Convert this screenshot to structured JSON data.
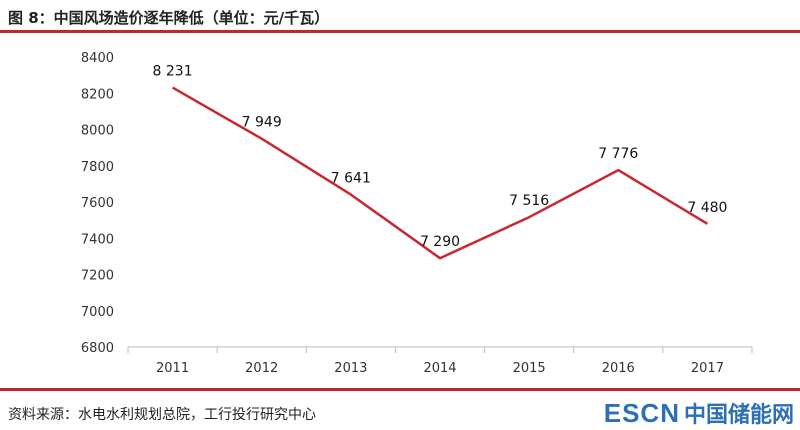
{
  "figure": {
    "title": "图 8：中国风场造价逐年降低（单位：元/千瓦）",
    "source": "资料来源：水电水利规划总院，工行投行研究中心"
  },
  "watermark": {
    "brand_en": "ESCN",
    "brand_cn": "中国储能网"
  },
  "colors": {
    "accent_red": "#c0272d",
    "line": "#c8282e",
    "brand_blue": "#2d6fb5"
  },
  "chart_data": {
    "type": "line",
    "title": "",
    "xlabel": "",
    "ylabel": "",
    "categories": [
      "2011",
      "2012",
      "2013",
      "2014",
      "2015",
      "2016",
      "2017"
    ],
    "values": [
      8231,
      7949,
      7641,
      7290,
      7516,
      7776,
      7480
    ],
    "data_labels": [
      "8 231",
      "7 949",
      "7 641",
      "7 290",
      "7 516",
      "7 776",
      "7 480"
    ],
    "yticks": [
      6800,
      7000,
      7200,
      7400,
      7600,
      7800,
      8000,
      8200,
      8400
    ],
    "ytick_labels": [
      "6800",
      "7000",
      "7200",
      "7400",
      "7600",
      "7800",
      "8000",
      "8200",
      "8400"
    ],
    "ylim": [
      6800,
      8400
    ],
    "grid": false,
    "legend": "none"
  }
}
